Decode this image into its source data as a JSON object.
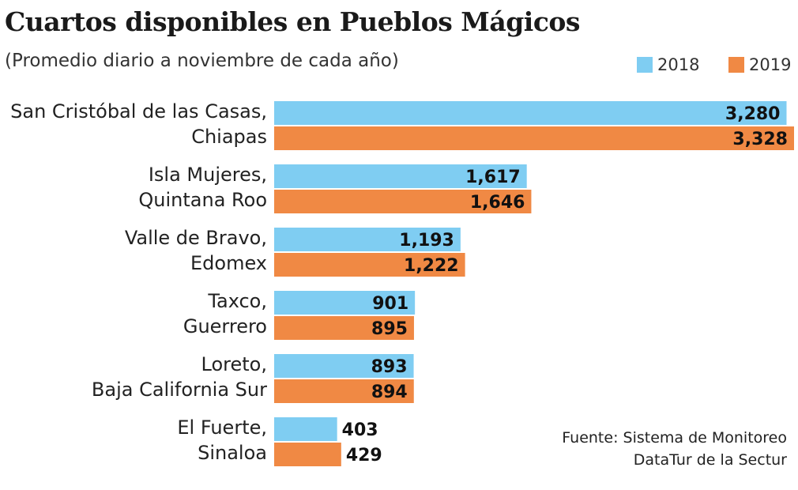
{
  "chart_data": {
    "type": "bar",
    "orientation": "horizontal",
    "title": "Cuartos disponibles en Pueblos Mágicos",
    "subtitle": "(Promedio diario a noviembre de cada año)",
    "categories": [
      [
        "San Cristóbal de las Casas,",
        "Chiapas"
      ],
      [
        "Isla Mujeres,",
        "Quintana Roo"
      ],
      [
        "Valle de Bravo,",
        "Edomex"
      ],
      [
        "Taxco,",
        "Guerrero"
      ],
      [
        "Loreto,",
        "Baja California Sur"
      ],
      [
        "El Fuerte,",
        "Sinaloa"
      ]
    ],
    "series": [
      {
        "name": "2018",
        "color": "#7fcdf2",
        "values": [
          3280,
          1617,
          1193,
          901,
          893,
          403
        ],
        "labels": [
          "3,280",
          "1,617",
          "1,193",
          "901",
          "893",
          "403"
        ]
      },
      {
        "name": "2019",
        "color": "#f08944",
        "values": [
          3328,
          1646,
          1222,
          895,
          894,
          429
        ],
        "labels": [
          "3,328",
          "1,646",
          "1,222",
          "895",
          "894",
          "429"
        ]
      }
    ],
    "legend": "top-right",
    "grid": false,
    "source": [
      "Fuente: Sistema de Monitoreo",
      "DataTur de la Sectur"
    ]
  }
}
